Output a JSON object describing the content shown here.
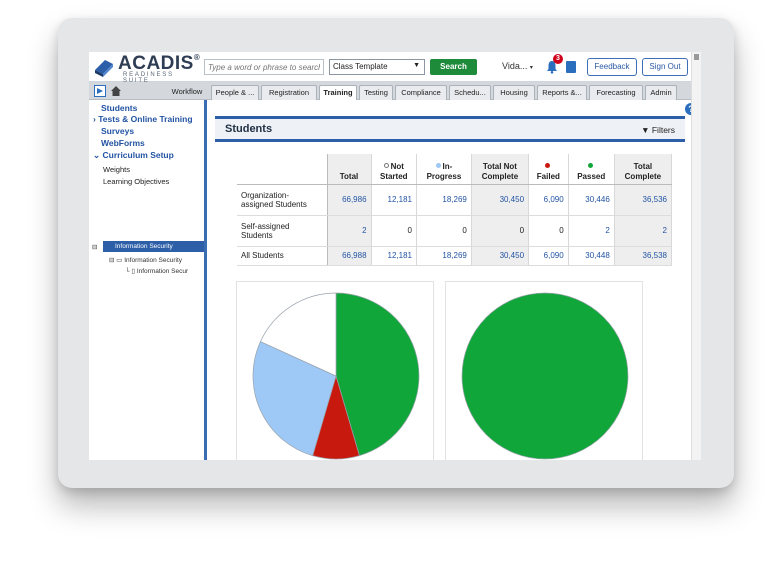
{
  "header": {
    "logo_name": "ACADIS",
    "logo_reg": "®",
    "logo_sub": "READINESS SUITE",
    "search_placeholder": "Type a word or phrase to search",
    "template_select": "Class Template",
    "search_button": "Search",
    "user_name": "Vida...",
    "notification_count": "3",
    "feedback_button": "Feedback",
    "signout_button": "Sign Out"
  },
  "tabs": [
    {
      "label": "Workflow"
    },
    {
      "label": "People & ..."
    },
    {
      "label": "Registration"
    },
    {
      "label": "Training"
    },
    {
      "label": "Testing"
    },
    {
      "label": "Compliance"
    },
    {
      "label": "Schedu..."
    },
    {
      "label": "Housing"
    },
    {
      "label": "Reports &..."
    },
    {
      "label": "Forecasting"
    },
    {
      "label": "Admin"
    }
  ],
  "sidebar": {
    "nav": [
      "Students",
      "Tests & Online Training",
      "Surveys",
      "WebForms",
      "Curriculum Setup"
    ],
    "sub": [
      "Weights",
      "Learning Objectives"
    ],
    "tree": [
      "Information Security",
      "Information Security",
      "Information Secur"
    ]
  },
  "main": {
    "help": "?",
    "title": "Students",
    "filters": "Filters",
    "columns": [
      "Total",
      "Not Started",
      "In-Progress",
      "Total Not Complete",
      "Failed",
      "Passed",
      "Total Complete"
    ],
    "column_lines": [
      [
        "Total"
      ],
      [
        "Not",
        "Started"
      ],
      [
        "In-",
        "Progress"
      ],
      [
        "Total Not",
        "Complete"
      ],
      [
        "Failed"
      ],
      [
        "Passed"
      ],
      [
        "Total",
        "Complete"
      ]
    ],
    "rows": [
      {
        "label": [
          "Organization-",
          "assigned Students"
        ],
        "values": [
          "66,986",
          "12,181",
          "18,269",
          "30,450",
          "6,090",
          "30,446",
          "36,536"
        ]
      },
      {
        "label": [
          "Self-assigned",
          "Students"
        ],
        "values": [
          "2",
          "0",
          "0",
          "0",
          "0",
          "2",
          "2"
        ]
      },
      {
        "label": [
          "All Students"
        ],
        "values": [
          "66,988",
          "12,181",
          "18,269",
          "30,450",
          "6,090",
          "30,448",
          "36,538"
        ]
      }
    ]
  },
  "colors": {
    "not_started": "#ffffff",
    "in_progress": "#9ec8f5",
    "failed": "#c8190f",
    "passed": "#11a63a",
    "accent": "#2c5fa8"
  },
  "chart_data": [
    {
      "type": "pie",
      "title": "",
      "categories": [
        "Passed",
        "Failed",
        "In-Progress",
        "Not Started"
      ],
      "values": [
        30446,
        6090,
        18269,
        12181
      ],
      "colors": [
        "#11a63a",
        "#c8190f",
        "#9ec8f5",
        "#ffffff"
      ]
    },
    {
      "type": "pie",
      "title": "",
      "categories": [
        "Passed"
      ],
      "values": [
        2
      ],
      "colors": [
        "#11a63a"
      ]
    }
  ]
}
